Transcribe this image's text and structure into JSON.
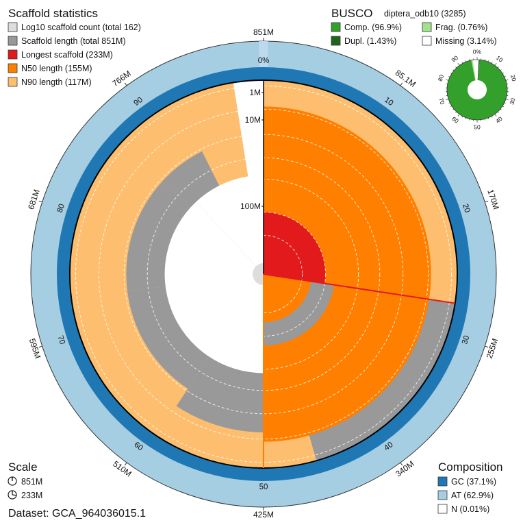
{
  "chart_data": {
    "type": "snail",
    "title": "Scaffold statistics",
    "legend": [
      {
        "key": "log10",
        "label": "Log10 scaffold count (total 162)",
        "color": "#dddddd"
      },
      {
        "key": "length",
        "label": "Scaffold length (total 851M)",
        "color": "#999999"
      },
      {
        "key": "longest",
        "label": "Longest scaffold (233M)",
        "color": "#e31a1c"
      },
      {
        "key": "n50",
        "label": "N50 length (155M)",
        "color": "#ff7f00"
      },
      {
        "key": "n90",
        "label": "N90 length (117M)",
        "color": "#fdbf6f"
      }
    ],
    "total_length": 851,
    "longest_scaffold": 233,
    "n50": 155,
    "n90": 117,
    "n50_percent": 50,
    "n90_percent": 90,
    "longest_percent": 27.4,
    "radial_scale_labels": [
      "1M",
      "10M",
      "100M"
    ],
    "length_curve_percent": [
      0,
      27.4,
      45.6,
      59.3,
      73.0,
      86.8,
      92.6,
      94.5,
      96.0,
      97.5
    ],
    "length_curve_value": [
      233,
      233,
      155,
      117,
      117,
      117,
      40,
      15,
      8,
      4
    ],
    "outer_length_ticks": [
      "851M",
      "85.1M",
      "170M",
      "255M",
      "340M",
      "425M",
      "510M",
      "595M",
      "681M",
      "766M"
    ],
    "percent_ticks": [
      "0%",
      "10",
      "20",
      "30",
      "40",
      "50",
      "60",
      "70",
      "80",
      "90"
    ],
    "busco": {
      "title": "BUSCO",
      "lineage": "diptera_odb10 (3285)",
      "items": [
        {
          "label": "Comp. (96.9%)",
          "value": 96.9,
          "color": "#33a02c"
        },
        {
          "label": "Dupl. (1.43%)",
          "value": 1.43,
          "color": "#20641c"
        },
        {
          "label": "Frag. (0.76%)",
          "value": 0.76,
          "color": "#a3e28d"
        },
        {
          "label": "Missing (3.14%)",
          "value": 3.14,
          "color": "#ffffff"
        }
      ],
      "ticks": [
        "0%",
        "10",
        "20",
        "30",
        "40",
        "50",
        "60",
        "70",
        "80",
        "90"
      ]
    },
    "composition": {
      "title": "Composition",
      "items": [
        {
          "label": "GC (37.1%)",
          "value": 37.1,
          "color": "#1f78b4"
        },
        {
          "label": "AT (62.9%)",
          "value": 62.9,
          "color": "#a6cee3"
        },
        {
          "label": "N (0.01%)",
          "value": 0.01,
          "color": "#ffffff"
        }
      ]
    },
    "scale": {
      "title": "Scale",
      "items": [
        "851M",
        "233M"
      ]
    },
    "dataset": "Dataset: GCA_964036015.1"
  }
}
